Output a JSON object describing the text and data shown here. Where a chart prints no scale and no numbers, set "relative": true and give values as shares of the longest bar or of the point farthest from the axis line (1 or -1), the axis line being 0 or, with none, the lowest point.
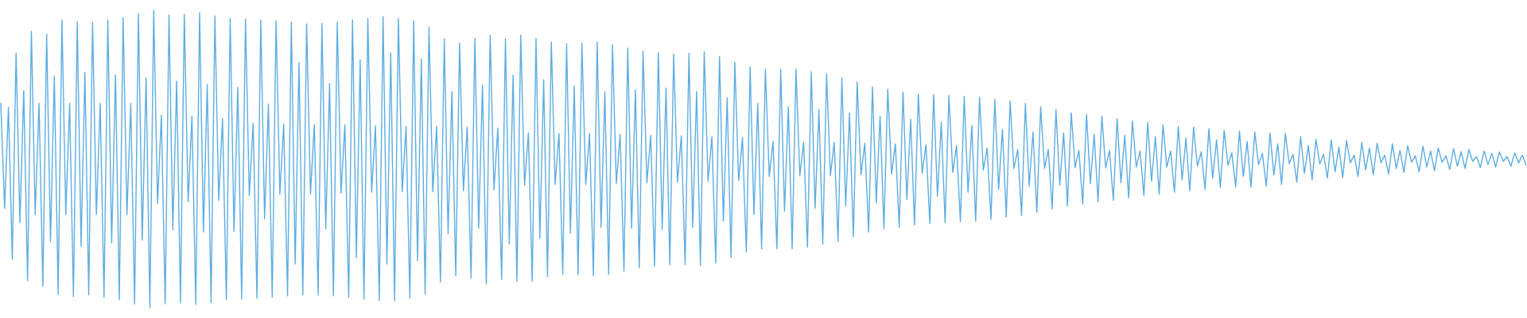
{
  "chart_data": {
    "type": "line",
    "relative": true,
    "color": "#5dade2",
    "categories": [
      null,
      null,
      null,
      null,
      null,
      null,
      null,
      null,
      null,
      null,
      null,
      null,
      null,
      null,
      null,
      null,
      null,
      null,
      null,
      null,
      null,
      null,
      null,
      null,
      null,
      null,
      null,
      null,
      null,
      null,
      null,
      null,
      null,
      null,
      null,
      null,
      null,
      null,
      null,
      null,
      null,
      null,
      null,
      null,
      null,
      null,
      null,
      null,
      null,
      null,
      null,
      null,
      null,
      null,
      null,
      null,
      null,
      null,
      null,
      null,
      null,
      null,
      null,
      null,
      null,
      null,
      null,
      null,
      null,
      null,
      null,
      null,
      null,
      null,
      null,
      null,
      null,
      null,
      null,
      null,
      null,
      null,
      null,
      null,
      null,
      null,
      null,
      null,
      null,
      null,
      null,
      null,
      null,
      null,
      null,
      null,
      null,
      null,
      null,
      null,
      null,
      null,
      null,
      null,
      null,
      null,
      null,
      null,
      null,
      null,
      null,
      null,
      null,
      null,
      null,
      null,
      null,
      null,
      null,
      null,
      null,
      null,
      null,
      null,
      null,
      null,
      null,
      null,
      null,
      null,
      null,
      null,
      null,
      null,
      null,
      null,
      null,
      null,
      null,
      null,
      null,
      null,
      null,
      null,
      null,
      null,
      null,
      null,
      null,
      null,
      null,
      null,
      null,
      null,
      null,
      null,
      null,
      null,
      null,
      null,
      null,
      null,
      null,
      null,
      null,
      null,
      null,
      null,
      null,
      null,
      null,
      null,
      null,
      null,
      null,
      null,
      null,
      null,
      null,
      null,
      null,
      null,
      null,
      null,
      null,
      null,
      null,
      null,
      null,
      null,
      null,
      null,
      null,
      null,
      null,
      null,
      null,
      null,
      null,
      null,
      null,
      null,
      null,
      null,
      null,
      null,
      null,
      null,
      null,
      null,
      null,
      null,
      null,
      null,
      null,
      null,
      null,
      null,
      null,
      null,
      null,
      null,
      null,
      null,
      null,
      null,
      null,
      null,
      null,
      null,
      null,
      null,
      null,
      null,
      null,
      null,
      null,
      null,
      null,
      null,
      null,
      null,
      null,
      null,
      null,
      null,
      null,
      null,
      null,
      null,
      null,
      null,
      null,
      null,
      null,
      null,
      null,
      null,
      null,
      null,
      null,
      null,
      null,
      null,
      null,
      null,
      null,
      null,
      null,
      null,
      null,
      null,
      null,
      null,
      null,
      null,
      null,
      null,
      null,
      null,
      null,
      null,
      null,
      null,
      null,
      null,
      null,
      null,
      null,
      null,
      null,
      null,
      null,
      null,
      null,
      null,
      null,
      null,
      null,
      null,
      null,
      null,
      null,
      null,
      null,
      null,
      null,
      null,
      null,
      null,
      null,
      null,
      null,
      null,
      null,
      null,
      null,
      null,
      null,
      null,
      null,
      null,
      null,
      null,
      null,
      null,
      null,
      null,
      null,
      null,
      null,
      null,
      null,
      null,
      null,
      null,
      null,
      null,
      null,
      null,
      null,
      null,
      null,
      null,
      null,
      null,
      null,
      null,
      null,
      null,
      null,
      null,
      null,
      null,
      null,
      null,
      null,
      null,
      null,
      null,
      null,
      null,
      null,
      null,
      null,
      null,
      null,
      null,
      null,
      null,
      null,
      null,
      null,
      null,
      null,
      null,
      null,
      null,
      null,
      null,
      null,
      null,
      null,
      null,
      null,
      null,
      null,
      null,
      null,
      null,
      null,
      null,
      null,
      null,
      null,
      null,
      null,
      null,
      null,
      null
    ],
    "values": [
      0.687,
      0.334,
      0.674,
      0.163,
      0.856,
      0.286,
      0.73,
      0.091,
      0.93,
      0.313,
      0.687,
      0.072,
      0.92,
      0.222,
      0.778,
      0.045,
      0.968,
      0.313,
      0.687,
      0.037,
      0.96,
      0.206,
      0.791,
      0.043,
      0.96,
      0.313,
      0.687,
      0.035,
      0.968,
      0.217,
      0.783,
      0.027,
      0.976,
      0.313,
      0.687,
      0.013,
      0.989,
      0.227,
      0.773,
      0.0,
      1.0,
      0.35,
      0.647,
      0.013,
      0.984,
      0.262,
      0.762,
      0.016,
      0.987,
      0.356,
      0.644,
      0.011,
      0.992,
      0.254,
      0.751,
      0.016,
      0.981,
      0.361,
      0.636,
      0.027,
      0.973,
      0.257,
      0.741,
      0.029,
      0.971,
      0.377,
      0.62,
      0.032,
      0.968,
      0.299,
      0.685,
      0.035,
      0.965,
      0.382,
      0.618,
      0.04,
      0.96,
      0.147,
      0.824,
      0.043,
      0.955,
      0.382,
      0.615,
      0.043,
      0.957,
      0.265,
      0.754,
      0.04,
      0.96,
      0.385,
      0.615,
      0.035,
      0.968,
      0.168,
      0.834,
      0.029,
      0.973,
      0.388,
      0.612,
      0.024,
      0.979,
      0.147,
      0.856,
      0.024,
      0.973,
      0.39,
      0.61,
      0.032,
      0.965,
      0.158,
      0.837,
      0.045,
      0.944,
      0.39,
      0.61,
      0.086,
      0.904,
      0.249,
      0.727,
      0.107,
      0.89,
      0.393,
      0.607,
      0.099,
      0.906,
      0.267,
      0.749,
      0.08,
      0.917,
      0.396,
      0.604,
      0.094,
      0.904,
      0.214,
      0.783,
      0.088,
      0.917,
      0.412,
      0.588,
      0.088,
      0.906,
      0.233,
      0.767,
      0.104,
      0.893,
      0.414,
      0.586,
      0.112,
      0.888,
      0.251,
      0.746,
      0.11,
      0.89,
      0.414,
      0.586,
      0.107,
      0.893,
      0.27,
      0.727,
      0.112,
      0.885,
      0.417,
      0.583,
      0.123,
      0.874,
      0.267,
      0.733,
      0.134,
      0.864,
      0.42,
      0.58,
      0.139,
      0.858,
      0.262,
      0.738,
      0.144,
      0.853,
      0.422,
      0.578,
      0.144,
      0.856,
      0.27,
      0.727,
      0.142,
      0.861,
      0.425,
      0.575,
      0.15,
      0.845,
      0.291,
      0.706,
      0.168,
      0.826,
      0.428,
      0.572,
      0.187,
      0.81,
      0.313,
      0.687,
      0.198,
      0.802,
      0.441,
      0.559,
      0.198,
      0.802,
      0.324,
      0.676,
      0.198,
      0.802,
      0.444,
      0.556,
      0.203,
      0.794,
      0.334,
      0.666,
      0.214,
      0.786,
      0.444,
      0.556,
      0.222,
      0.773,
      0.342,
      0.655,
      0.238,
      0.759,
      0.447,
      0.553,
      0.254,
      0.743,
      0.353,
      0.644,
      0.265,
      0.735,
      0.449,
      0.551,
      0.27,
      0.725,
      0.364,
      0.634,
      0.278,
      0.719,
      0.452,
      0.548,
      0.283,
      0.717,
      0.374,
      0.623,
      0.286,
      0.714,
      0.455,
      0.545,
      0.289,
      0.711,
      0.388,
      0.612,
      0.291,
      0.709,
      0.463,
      0.537,
      0.297,
      0.701,
      0.398,
      0.599,
      0.305,
      0.695,
      0.468,
      0.532,
      0.31,
      0.687,
      0.409,
      0.591,
      0.321,
      0.676,
      0.468,
      0.532,
      0.332,
      0.666,
      0.412,
      0.588,
      0.342,
      0.655,
      0.471,
      0.529,
      0.348,
      0.65,
      0.417,
      0.583,
      0.356,
      0.644,
      0.471,
      0.529,
      0.361,
      0.636,
      0.42,
      0.58,
      0.369,
      0.628,
      0.473,
      0.527,
      0.377,
      0.623,
      0.425,
      0.575,
      0.382,
      0.615,
      0.473,
      0.527,
      0.388,
      0.61,
      0.43,
      0.57,
      0.393,
      0.607,
      0.476,
      0.524,
      0.398,
      0.602,
      0.436,
      0.564,
      0.404,
      0.596,
      0.479,
      0.521,
      0.406,
      0.594,
      0.441,
      0.559,
      0.406,
      0.591,
      0.481,
      0.519,
      0.409,
      0.588,
      0.447,
      0.551,
      0.414,
      0.586,
      0.484,
      0.516,
      0.422,
      0.575,
      0.452,
      0.545,
      0.43,
      0.567,
      0.484,
      0.516,
      0.436,
      0.564,
      0.457,
      0.54,
      0.438,
      0.562,
      0.487,
      0.513,
      0.441,
      0.556,
      0.463,
      0.537,
      0.447,
      0.553,
      0.487,
      0.513,
      0.449,
      0.551,
      0.468,
      0.529,
      0.455,
      0.545,
      0.489,
      0.511,
      0.457,
      0.543,
      0.473,
      0.527,
      0.46,
      0.537,
      0.489,
      0.511,
      0.465,
      0.535,
      0.476,
      0.524,
      0.468,
      0.532,
      0.492,
      0.508,
      0.471,
      0.527,
      0.481,
      0.519,
      0.473,
      0.524,
      0.492,
      0.508,
      0.476,
      0.521,
      0.487,
      0.513,
      0.479
    ]
  }
}
